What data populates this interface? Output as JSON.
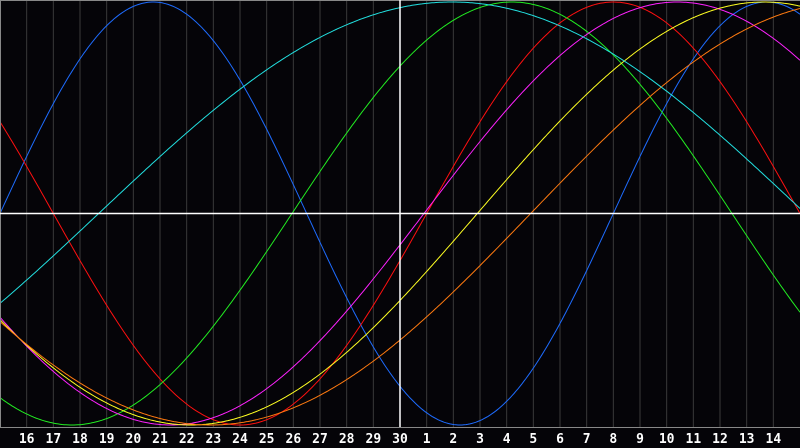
{
  "chart_data": {
    "type": "line",
    "xlim": [
      0,
      30
    ],
    "ylim": [
      -1,
      1
    ],
    "grid": true,
    "legend": "none",
    "x_tick_labels": [
      "16",
      "17",
      "18",
      "19",
      "20",
      "21",
      "22",
      "23",
      "24",
      "25",
      "26",
      "27",
      "28",
      "29",
      "30",
      "1",
      "2",
      "3",
      "4",
      "5",
      "6",
      "7",
      "8",
      "9",
      "10",
      "11",
      "12",
      "13",
      "14"
    ],
    "x_tick_positions": [
      1,
      2,
      3,
      4,
      5,
      6,
      7,
      8,
      9,
      10,
      11,
      12,
      13,
      14,
      15,
      16,
      17,
      18,
      19,
      20,
      21,
      22,
      23,
      24,
      25,
      26,
      27,
      28,
      29
    ],
    "today_x": 15,
    "baseline_y": 0,
    "series": [
      {
        "color": "#1e6cff",
        "period_days": 23,
        "rising_zero_x": 0.0
      },
      {
        "color": "#ff1010",
        "period_days": 28,
        "rising_zero_x": 16.0
      },
      {
        "color": "#22ee22",
        "period_days": 33,
        "rising_zero_x": 10.95
      },
      {
        "color": "#ff22ff",
        "period_days": 38,
        "rising_zero_x": 15.9
      },
      {
        "color": "#ffff22",
        "period_days": 43,
        "rising_zero_x": 17.9
      },
      {
        "color": "#ff7a10",
        "period_days": 48,
        "rising_zero_x": 19.9
      },
      {
        "color": "#22e0e0",
        "period_days": 53,
        "rising_zero_x": 3.7
      }
    ],
    "colors": {
      "background": "#050408",
      "grid": "#3a3a3a",
      "axis": "#ffffff",
      "border": "#888888"
    }
  }
}
